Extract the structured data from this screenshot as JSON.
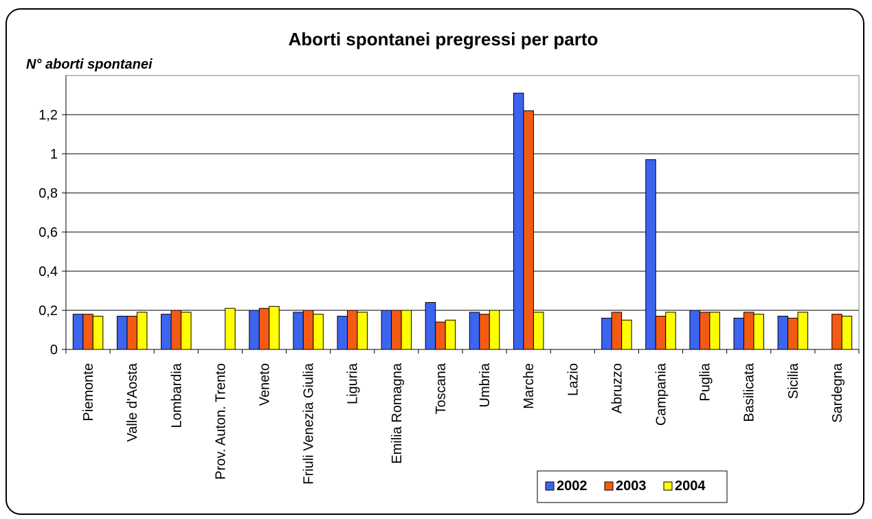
{
  "chart_data": {
    "type": "bar",
    "title": "Aborti spontanei pregressi per parto",
    "ylabel": "N° aborti spontanei",
    "xlabel": "",
    "ylim": [
      0,
      1.4
    ],
    "y_ticks": [
      {
        "value": 0,
        "label": "0"
      },
      {
        "value": 0.2,
        "label": "0,2"
      },
      {
        "value": 0.4,
        "label": "0,4"
      },
      {
        "value": 0.6,
        "label": "0,6"
      },
      {
        "value": 0.8,
        "label": "0,8"
      },
      {
        "value": 1.0,
        "label": "1"
      },
      {
        "value": 1.2,
        "label": "1,2"
      }
    ],
    "grid": true,
    "legend_position": "bottom-right",
    "categories": [
      "Piemonte",
      "Valle d'Aosta",
      "Lombardia",
      "Prov. Auton. Trento",
      "Veneto",
      "Friuli Venezia Giulia",
      "Liguria",
      "Emilia Romagna",
      "Toscana",
      "Umbria",
      "Marche",
      "Lazio",
      "Abruzzo",
      "Campania",
      "Puglia",
      "Basilicata",
      "Sicilia",
      "Sardegna"
    ],
    "series": [
      {
        "name": "2002",
        "color": "#3c64ee",
        "values": [
          0.18,
          0.17,
          0.18,
          null,
          0.2,
          0.19,
          0.17,
          0.2,
          0.24,
          0.19,
          1.31,
          null,
          0.16,
          0.97,
          0.2,
          0.16,
          0.17,
          null
        ]
      },
      {
        "name": "2003",
        "color": "#f35a14",
        "values": [
          0.18,
          0.17,
          0.2,
          null,
          0.21,
          0.2,
          0.2,
          0.2,
          0.14,
          0.18,
          1.22,
          null,
          0.19,
          0.17,
          0.19,
          0.19,
          0.16,
          0.18
        ]
      },
      {
        "name": "2004",
        "color": "#ffff00",
        "values": [
          0.17,
          0.19,
          0.19,
          0.21,
          0.22,
          0.18,
          0.19,
          0.2,
          0.15,
          0.2,
          0.19,
          null,
          0.15,
          0.19,
          0.19,
          0.18,
          0.19,
          0.17
        ]
      }
    ]
  }
}
